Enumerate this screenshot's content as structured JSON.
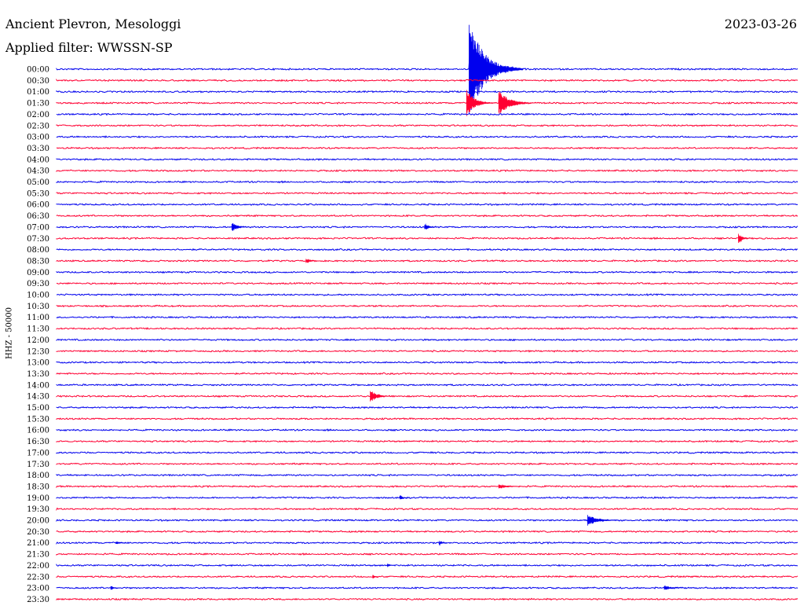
{
  "header": {
    "station": "Ancient Plevron, Mesologgi",
    "filter": "Applied filter: WWSSN-SP",
    "date": "2023-03-26"
  },
  "chart_data": {
    "type": "line",
    "title": "Ancient Plevron, Mesologgi",
    "subtitle": "Applied filter: WWSSN-SP",
    "ylabel": "HHZ - 50000",
    "xlabel": "",
    "grid": false,
    "line_labels": [
      "00:00",
      "00:30",
      "01:00",
      "01:30",
      "02:00",
      "02:30",
      "03:00",
      "03:30",
      "04:00",
      "04:30",
      "05:00",
      "05:30",
      "06:00",
      "06:30",
      "07:00",
      "07:30",
      "08:00",
      "08:30",
      "09:00",
      "09:30",
      "10:00",
      "10:30",
      "11:00",
      "11:30",
      "12:00",
      "12:30",
      "13:00",
      "13:30",
      "14:00",
      "14:30",
      "15:00",
      "15:30",
      "16:00",
      "16:30",
      "17:00",
      "17:30",
      "18:00",
      "18:30",
      "19:00",
      "19:30",
      "20:00",
      "20:30",
      "21:00",
      "21:30",
      "22:00",
      "22:30",
      "23:00",
      "23:30"
    ],
    "colors": [
      "#0000ee",
      "#ff0033"
    ],
    "events": [
      {
        "line": 0,
        "minute": 16.7,
        "amplitude": 65,
        "duration": 2.2
      },
      {
        "line": 3,
        "minute": 16.6,
        "amplitude": 18,
        "duration": 1.2
      },
      {
        "line": 3,
        "minute": 17.9,
        "amplitude": 16,
        "duration": 1.6
      },
      {
        "line": 14,
        "minute": 7.1,
        "amplitude": 6,
        "duration": 0.8
      },
      {
        "line": 14,
        "minute": 14.9,
        "amplitude": 4,
        "duration": 0.7
      },
      {
        "line": 15,
        "minute": 27.6,
        "amplitude": 7,
        "duration": 0.6
      },
      {
        "line": 17,
        "minute": 10.1,
        "amplitude": 3,
        "duration": 0.7
      },
      {
        "line": 29,
        "minute": 12.7,
        "amplitude": 9,
        "duration": 0.9
      },
      {
        "line": 37,
        "minute": 17.9,
        "amplitude": 3,
        "duration": 1.3
      },
      {
        "line": 38,
        "minute": 13.9,
        "amplitude": 3,
        "duration": 0.5
      },
      {
        "line": 40,
        "minute": 21.5,
        "amplitude": 7,
        "duration": 1.5
      },
      {
        "line": 42,
        "minute": 2.4,
        "amplitude": 2,
        "duration": 0.8
      },
      {
        "line": 42,
        "minute": 15.5,
        "amplitude": 3,
        "duration": 0.4
      },
      {
        "line": 44,
        "minute": 13.4,
        "amplitude": 3,
        "duration": 0.3
      },
      {
        "line": 45,
        "minute": 12.8,
        "amplitude": 3,
        "duration": 0.4
      },
      {
        "line": 46,
        "minute": 2.2,
        "amplitude": 3,
        "duration": 0.5
      },
      {
        "line": 46,
        "minute": 24.6,
        "amplitude": 3,
        "duration": 1.1
      }
    ]
  }
}
